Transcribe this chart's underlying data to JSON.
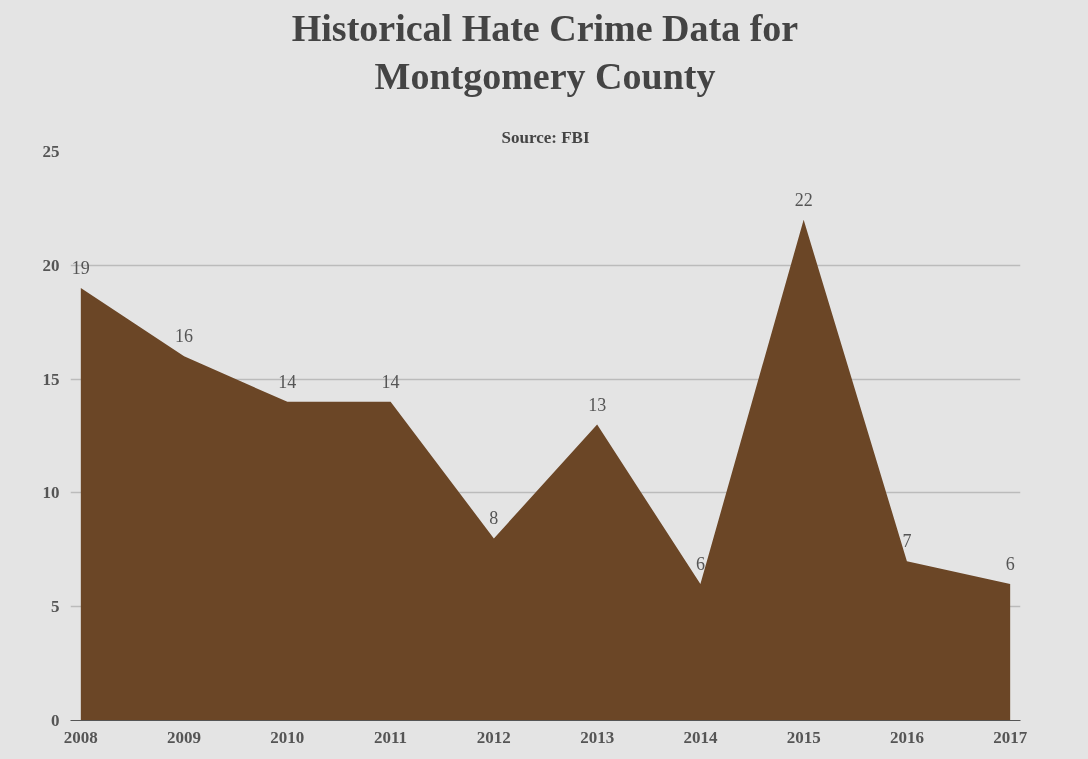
{
  "chart_data": {
    "type": "area",
    "title": "Historical Hate Crime Data for\nMontgomery County",
    "subtitle": "Source: FBI",
    "categories": [
      "2008",
      "2009",
      "2010",
      "2011",
      "2012",
      "2013",
      "2014",
      "2015",
      "2016",
      "2017"
    ],
    "values": [
      19,
      16,
      14,
      14,
      8,
      13,
      6,
      22,
      7,
      6
    ],
    "color": "#6b4626",
    "ylim": [
      0,
      25
    ],
    "yticks": [
      0,
      5,
      10,
      15,
      20,
      25
    ],
    "grid": "y",
    "data_labels": true
  }
}
